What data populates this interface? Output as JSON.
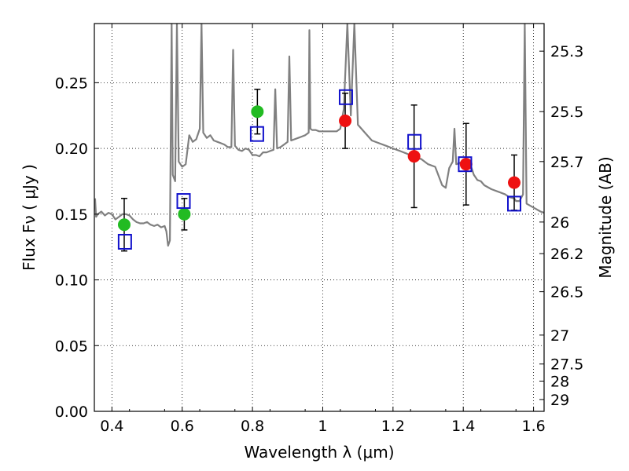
{
  "chart_data": {
    "type": "scatter",
    "title": "",
    "xlabel": "Wavelength  λ (μm)",
    "ylabel": "Flux  Fν  ( μJy )",
    "ylabel_right": "Magnitude (AB)",
    "xlim": [
      0.35,
      1.63
    ],
    "ylim": [
      0.0,
      0.295
    ],
    "grid": true,
    "x_ticks": [
      0.4,
      0.6,
      0.8,
      1.0,
      1.2,
      1.4,
      1.6
    ],
    "x_tick_labels": [
      "0.4",
      "0.6",
      "0.8",
      "1",
      "1.2",
      "1.4",
      "1.6"
    ],
    "y_ticks": [
      0.0,
      0.05,
      0.1,
      0.15,
      0.2,
      0.25
    ],
    "y_tick_labels": [
      "0.00",
      "0.05",
      "0.10",
      "0.15",
      "0.20",
      "0.25"
    ],
    "right_axis_ticks": [
      {
        "label": "25.3",
        "flux": 0.274
      },
      {
        "label": "25.5",
        "flux": 0.228
      },
      {
        "label": "25.7",
        "flux": 0.19
      },
      {
        "label": "26",
        "flux": 0.144
      },
      {
        "label": "26.2",
        "flux": 0.12
      },
      {
        "label": "26.5",
        "flux": 0.091
      },
      {
        "label": "27",
        "flux": 0.058
      },
      {
        "label": "27.5",
        "flux": 0.036
      },
      {
        "label": "28",
        "flux": 0.023
      },
      {
        "label": "29",
        "flux": 0.009
      }
    ],
    "series": [
      {
        "marker": "circle",
        "color": "#22bb22",
        "points": [
          {
            "x": 0.435,
            "y": 0.142,
            "yerr": 0.02
          },
          {
            "x": 0.606,
            "y": 0.15,
            "yerr": 0.012
          },
          {
            "x": 0.814,
            "y": 0.228,
            "yerr": 0.017
          }
        ]
      },
      {
        "marker": "circle",
        "color": "#ee1111",
        "points": [
          {
            "x": 1.064,
            "y": 0.221,
            "yerr": 0.021
          },
          {
            "x": 1.26,
            "y": 0.194,
            "yerr": 0.039
          },
          {
            "x": 1.408,
            "y": 0.188,
            "yerr": 0.031
          },
          {
            "x": 1.545,
            "y": 0.174,
            "yerr": 0.021
          }
        ]
      },
      {
        "marker": "open-square",
        "color": "#1111cc",
        "points": [
          {
            "x": 0.437,
            "y": 0.129
          },
          {
            "x": 0.604,
            "y": 0.16
          },
          {
            "x": 0.813,
            "y": 0.211
          },
          {
            "x": 1.066,
            "y": 0.239
          },
          {
            "x": 1.261,
            "y": 0.205
          },
          {
            "x": 1.405,
            "y": 0.188
          },
          {
            "x": 1.545,
            "y": 0.158
          }
        ]
      },
      {
        "type": "line",
        "color": "#808080",
        "points": [
          [
            0.352,
            0.162
          ],
          [
            0.355,
            0.148
          ],
          [
            0.36,
            0.15
          ],
          [
            0.37,
            0.152
          ],
          [
            0.38,
            0.149
          ],
          [
            0.39,
            0.151
          ],
          [
            0.4,
            0.15
          ],
          [
            0.41,
            0.146
          ],
          [
            0.42,
            0.148
          ],
          [
            0.43,
            0.15
          ],
          [
            0.44,
            0.15
          ],
          [
            0.45,
            0.149
          ],
          [
            0.46,
            0.146
          ],
          [
            0.47,
            0.144
          ],
          [
            0.48,
            0.143
          ],
          [
            0.49,
            0.143
          ],
          [
            0.5,
            0.144
          ],
          [
            0.51,
            0.142
          ],
          [
            0.52,
            0.141
          ],
          [
            0.53,
            0.142
          ],
          [
            0.54,
            0.14
          ],
          [
            0.55,
            0.141
          ],
          [
            0.555,
            0.137
          ],
          [
            0.56,
            0.126
          ],
          [
            0.565,
            0.13
          ],
          [
            0.57,
            0.295
          ],
          [
            0.573,
            0.18
          ],
          [
            0.58,
            0.175
          ],
          [
            0.585,
            0.295
          ],
          [
            0.59,
            0.19
          ],
          [
            0.6,
            0.186
          ],
          [
            0.61,
            0.188
          ],
          [
            0.62,
            0.21
          ],
          [
            0.63,
            0.205
          ],
          [
            0.64,
            0.207
          ],
          [
            0.65,
            0.215
          ],
          [
            0.655,
            0.295
          ],
          [
            0.66,
            0.212
          ],
          [
            0.67,
            0.208
          ],
          [
            0.68,
            0.21
          ],
          [
            0.69,
            0.206
          ],
          [
            0.7,
            0.205
          ],
          [
            0.71,
            0.204
          ],
          [
            0.72,
            0.203
          ],
          [
            0.73,
            0.201
          ],
          [
            0.74,
            0.201
          ],
          [
            0.745,
            0.275
          ],
          [
            0.75,
            0.202
          ],
          [
            0.76,
            0.199
          ],
          [
            0.77,
            0.198
          ],
          [
            0.78,
            0.2
          ],
          [
            0.79,
            0.199
          ],
          [
            0.8,
            0.195
          ],
          [
            0.81,
            0.195
          ],
          [
            0.82,
            0.194
          ],
          [
            0.83,
            0.197
          ],
          [
            0.84,
            0.197
          ],
          [
            0.85,
            0.198
          ],
          [
            0.86,
            0.199
          ],
          [
            0.865,
            0.245
          ],
          [
            0.87,
            0.2
          ],
          [
            0.88,
            0.201
          ],
          [
            0.89,
            0.203
          ],
          [
            0.9,
            0.205
          ],
          [
            0.905,
            0.27
          ],
          [
            0.91,
            0.206
          ],
          [
            0.92,
            0.207
          ],
          [
            0.93,
            0.208
          ],
          [
            0.94,
            0.209
          ],
          [
            0.95,
            0.21
          ],
          [
            0.96,
            0.212
          ],
          [
            0.962,
            0.29
          ],
          [
            0.965,
            0.215
          ],
          [
            0.97,
            0.214
          ],
          [
            0.98,
            0.214
          ],
          [
            0.99,
            0.213
          ],
          [
            1.0,
            0.213
          ],
          [
            1.02,
            0.213
          ],
          [
            1.04,
            0.213
          ],
          [
            1.05,
            0.215
          ],
          [
            1.06,
            0.23
          ],
          [
            1.07,
            0.295
          ],
          [
            1.08,
            0.225
          ],
          [
            1.09,
            0.295
          ],
          [
            1.1,
            0.218
          ],
          [
            1.12,
            0.212
          ],
          [
            1.14,
            0.206
          ],
          [
            1.16,
            0.204
          ],
          [
            1.18,
            0.202
          ],
          [
            1.2,
            0.2
          ],
          [
            1.22,
            0.198
          ],
          [
            1.24,
            0.196
          ],
          [
            1.26,
            0.193
          ],
          [
            1.28,
            0.192
          ],
          [
            1.3,
            0.188
          ],
          [
            1.32,
            0.186
          ],
          [
            1.34,
            0.172
          ],
          [
            1.35,
            0.17
          ],
          [
            1.36,
            0.185
          ],
          [
            1.37,
            0.19
          ],
          [
            1.375,
            0.215
          ],
          [
            1.38,
            0.188
          ],
          [
            1.4,
            0.19
          ],
          [
            1.42,
            0.188
          ],
          [
            1.43,
            0.18
          ],
          [
            1.44,
            0.176
          ],
          [
            1.45,
            0.175
          ],
          [
            1.46,
            0.172
          ],
          [
            1.48,
            0.169
          ],
          [
            1.5,
            0.167
          ],
          [
            1.52,
            0.165
          ],
          [
            1.53,
            0.163
          ],
          [
            1.545,
            0.162
          ],
          [
            1.55,
            0.16
          ],
          [
            1.56,
            0.16
          ],
          [
            1.57,
            0.165
          ],
          [
            1.575,
            0.295
          ],
          [
            1.58,
            0.158
          ],
          [
            1.6,
            0.155
          ],
          [
            1.62,
            0.152
          ],
          [
            1.63,
            0.151
          ]
        ]
      }
    ]
  }
}
